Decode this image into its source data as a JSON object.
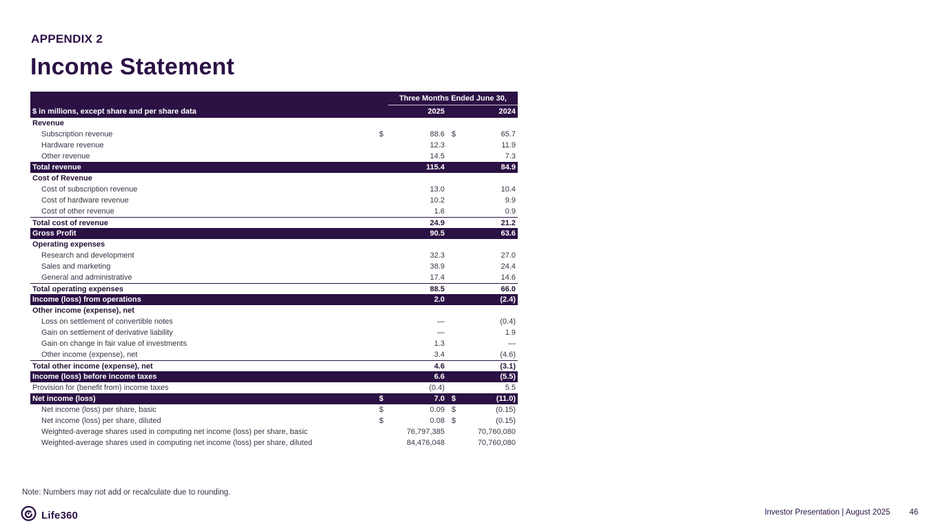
{
  "slide": {
    "appendix_label": "APPENDIX 2",
    "title": "Income Statement",
    "note": "Note: Numbers may not add or recalculate due to rounding.",
    "brand_name": "Life360",
    "footer_text": "Investor Presentation  | August 2025",
    "page_number": "46",
    "colors": {
      "primary_purple": "#2B1144",
      "band_text": "#FFFFFF",
      "body_text": "#3A3144"
    }
  },
  "table": {
    "header": {
      "left_label": "$ in millions, except share and per share data",
      "span_label": "Three Months Ended June 30,",
      "col_2025": "2025",
      "col_2024": "2024"
    },
    "rows": [
      {
        "style": "section",
        "label": "Revenue",
        "d1": "",
        "v1": "",
        "d2": "",
        "v2": ""
      },
      {
        "style": "detail",
        "label": "Subscription revenue",
        "d1": "$",
        "v1": "88.6",
        "d2": "$",
        "v2": "65.7"
      },
      {
        "style": "detail",
        "label": "Hardware revenue",
        "d1": "",
        "v1": "12.3",
        "d2": "",
        "v2": "11.9"
      },
      {
        "style": "detail",
        "label": "Other revenue",
        "d1": "",
        "v1": "14.5",
        "d2": "",
        "v2": "7.3"
      },
      {
        "style": "band",
        "label": "Total revenue",
        "d1": "",
        "v1": "115.4",
        "d2": "",
        "v2": "84.9"
      },
      {
        "style": "section",
        "label": "Cost of Revenue",
        "d1": "",
        "v1": "",
        "d2": "",
        "v2": ""
      },
      {
        "style": "detail",
        "label": "Cost of subscription revenue",
        "d1": "",
        "v1": "13.0",
        "d2": "",
        "v2": "10.4"
      },
      {
        "style": "detail",
        "label": "Cost of hardware revenue",
        "d1": "",
        "v1": "10.2",
        "d2": "",
        "v2": "9.9"
      },
      {
        "style": "detail",
        "label": "Cost of other revenue",
        "d1": "",
        "v1": "1.6",
        "d2": "",
        "v2": "0.9"
      },
      {
        "style": "total",
        "label": "Total cost of revenue",
        "d1": "",
        "v1": "24.9",
        "d2": "",
        "v2": "21.2"
      },
      {
        "style": "band",
        "label": "Gross Profit",
        "d1": "",
        "v1": "90.5",
        "d2": "",
        "v2": "63.6"
      },
      {
        "style": "section",
        "label": "Operating expenses",
        "d1": "",
        "v1": "",
        "d2": "",
        "v2": ""
      },
      {
        "style": "detail",
        "label": "Research and development",
        "d1": "",
        "v1": "32.3",
        "d2": "",
        "v2": "27.0"
      },
      {
        "style": "detail",
        "label": "Sales and marketing",
        "d1": "",
        "v1": "38.9",
        "d2": "",
        "v2": "24.4"
      },
      {
        "style": "detail",
        "label": "General and administrative",
        "d1": "",
        "v1": "17.4",
        "d2": "",
        "v2": "14.6"
      },
      {
        "style": "total",
        "label": "Total operating expenses",
        "d1": "",
        "v1": "88.5",
        "d2": "",
        "v2": "66.0"
      },
      {
        "style": "band",
        "label": "Income (loss) from operations",
        "d1": "",
        "v1": "2.0",
        "d2": "",
        "v2": "(2.4)"
      },
      {
        "style": "section",
        "label": "Other income (expense), net",
        "d1": "",
        "v1": "",
        "d2": "",
        "v2": ""
      },
      {
        "style": "detail",
        "label": "Loss on settlement of convertible notes",
        "d1": "",
        "v1": "—",
        "d2": "",
        "v2": "(0.4)"
      },
      {
        "style": "detail",
        "label": "Gain on settlement of derivative liability",
        "d1": "",
        "v1": "—",
        "d2": "",
        "v2": "1.9"
      },
      {
        "style": "detail",
        "label": "Gain on change in fair value of investments",
        "d1": "",
        "v1": "1.3",
        "d2": "",
        "v2": "—"
      },
      {
        "style": "detail",
        "label": "Other income (expense), net",
        "d1": "",
        "v1": "3.4",
        "d2": "",
        "v2": "(4.6)"
      },
      {
        "style": "total",
        "label": "Total other income (expense), net",
        "d1": "",
        "v1": "4.6",
        "d2": "",
        "v2": "(3.1)"
      },
      {
        "style": "band",
        "label": "Income (loss) before income taxes",
        "d1": "",
        "v1": "6.6",
        "d2": "",
        "v2": "(5.5)"
      },
      {
        "style": "plain",
        "label": "Provision for (benefit from) income taxes",
        "d1": "",
        "v1": "(0.4)",
        "d2": "",
        "v2": "5.5"
      },
      {
        "style": "band",
        "label": "Net income (loss)",
        "d1": "$",
        "v1": "7.0",
        "d2": "$",
        "v2": "(11.0)"
      },
      {
        "style": "detail",
        "label": "Net income (loss) per share, basic",
        "d1": "$",
        "v1": "0.09",
        "d2": "$",
        "v2": "(0.15)"
      },
      {
        "style": "detail",
        "label": "Net income (loss) per share, diluted",
        "d1": "$",
        "v1": "0.08",
        "d2": "$",
        "v2": "(0.15)"
      },
      {
        "style": "detail",
        "label": "Weighted-average shares used in computing net income (loss) per share, basic",
        "d1": "",
        "v1": "76,797,385",
        "d2": "",
        "v2": "70,760,080"
      },
      {
        "style": "detail",
        "label": "Weighted-average shares used in computing net income (loss) per share, diluted",
        "d1": "",
        "v1": "84,476,048",
        "d2": "",
        "v2": "70,760,080"
      }
    ]
  }
}
